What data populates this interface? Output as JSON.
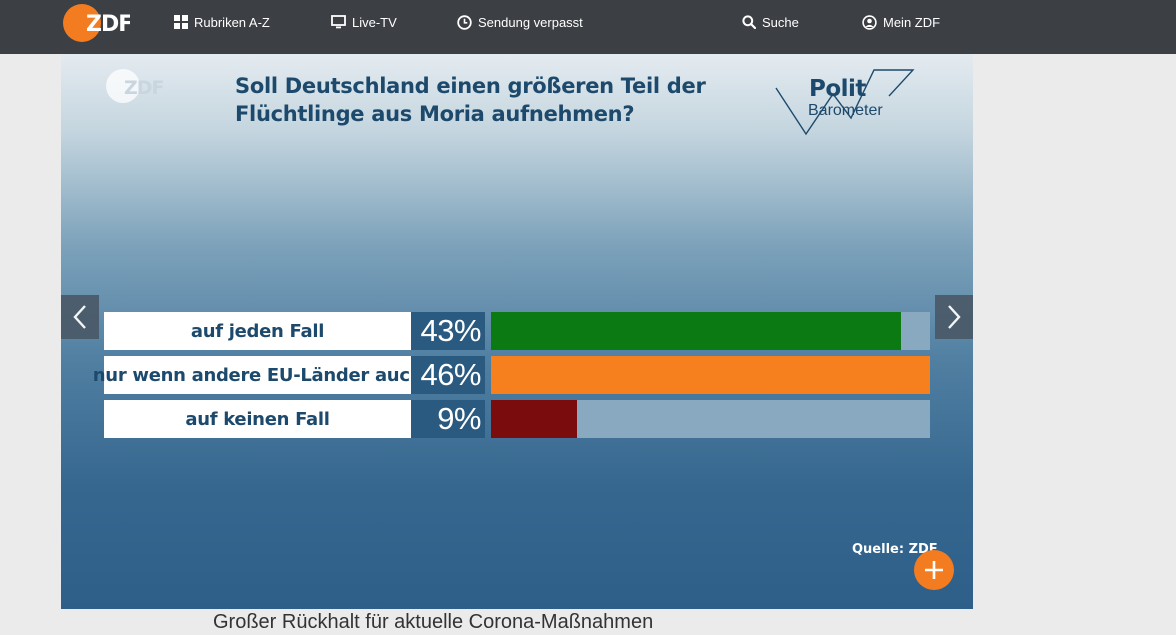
{
  "header": {
    "logo_text": "ZDF",
    "nav": [
      {
        "label": "Rubriken A-Z",
        "icon": "grid-icon"
      },
      {
        "label": "Live-TV",
        "icon": "tv-icon"
      },
      {
        "label": "Sendung verpasst",
        "icon": "clock-icon"
      },
      {
        "label": "Suche",
        "icon": "search-icon"
      },
      {
        "label": "Mein ZDF",
        "icon": "user-icon"
      }
    ]
  },
  "slide": {
    "logo_text": "ZDF",
    "title_line1": "Soll Deutschland einen größeren Teil der",
    "title_line2": "Flüchtlinge aus Moria aufnehmen?",
    "brand_line1": "Polit",
    "brand_line2": "Barometer",
    "source": "Quelle: ZDF"
  },
  "chart_data": {
    "type": "bar",
    "orientation": "horizontal",
    "title": "Soll Deutschland einen größeren Teil der Flüchtlinge aus Moria aufnehmen?",
    "categories": [
      "auf jeden Fall",
      "nur wenn andere EU-Länder auch",
      "auf keinen Fall"
    ],
    "values": [
      43,
      46,
      9
    ],
    "value_labels": [
      "43%",
      "46%",
      "9%"
    ],
    "colors": [
      "#0b7a12",
      "#f7801e",
      "#7a0c0d"
    ],
    "xlim": [
      0,
      46
    ],
    "grid": false
  },
  "caption": "Großer Rückhalt für aktuelle Corona-Maßnahmen",
  "colors": {
    "topbar": "#3c3f44",
    "accent": "#f47c20",
    "title_text": "#1d4a6c"
  }
}
